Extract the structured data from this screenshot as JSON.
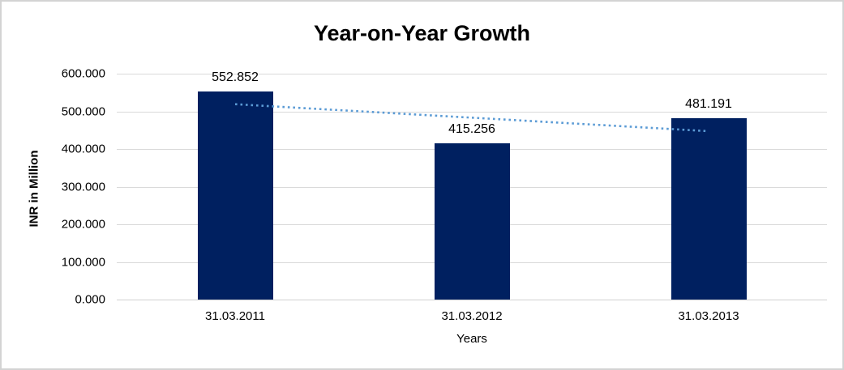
{
  "chart_data": {
    "type": "bar",
    "title": "Year-on-Year Growth",
    "xlabel": "Years",
    "ylabel": "INR in Million",
    "categories": [
      "31.03.2011",
      "31.03.2012",
      "31.03.2013"
    ],
    "values": [
      552.852,
      415.256,
      481.191
    ],
    "value_labels": [
      "552.852",
      "415.256",
      "481.191"
    ],
    "ylim": [
      0,
      600
    ],
    "ytick_values": [
      0,
      100,
      200,
      300,
      400,
      500,
      600
    ],
    "ytick_labels": [
      "0.000",
      "100.000",
      "200.000",
      "300.000",
      "400.000",
      "500.000",
      "600.000"
    ],
    "grid": true,
    "legend": "none",
    "trendline": {
      "type": "linear",
      "style": "dotted",
      "start_value": 518.9,
      "end_value": 447.3,
      "color": "#5b9bd5"
    },
    "colors": {
      "bar": "#002060",
      "gridline": "#d9d9d9",
      "axis": "#d0d0d0",
      "text": "#000000",
      "background": "#ffffff",
      "border": "#d3d3d3"
    }
  }
}
